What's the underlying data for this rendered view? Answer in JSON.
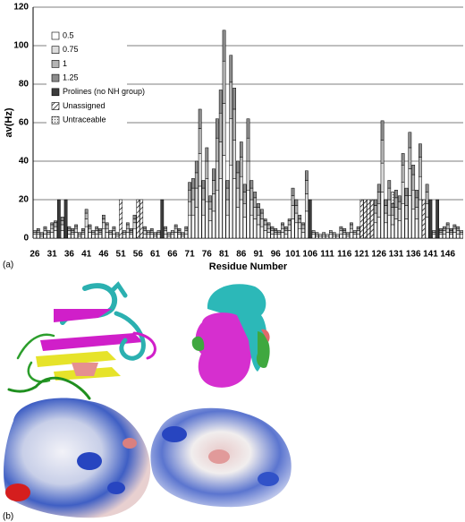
{
  "chart_data": {
    "type": "bar",
    "stacked": true,
    "x_label": "Residue Number",
    "y_label": "av(Hz)",
    "panel_label": "(a)",
    "grid": true,
    "ylim": [
      0,
      120
    ],
    "yticks": [
      0,
      20,
      40,
      60,
      80,
      100,
      120
    ],
    "categories": [
      "26",
      null,
      null,
      null,
      null,
      "31",
      null,
      null,
      null,
      null,
      "36",
      null,
      null,
      null,
      null,
      "41",
      null,
      null,
      null,
      null,
      "46",
      null,
      null,
      null,
      null,
      "51",
      null,
      null,
      null,
      null,
      "56",
      null,
      null,
      null,
      null,
      "61",
      null,
      null,
      null,
      null,
      "66",
      null,
      null,
      null,
      null,
      "71",
      null,
      null,
      null,
      null,
      "76",
      null,
      null,
      null,
      null,
      "81",
      null,
      null,
      null,
      null,
      "86",
      null,
      null,
      null,
      null,
      "91",
      null,
      null,
      null,
      null,
      "96",
      null,
      null,
      null,
      null,
      "101",
      null,
      null,
      null,
      null,
      "106",
      null,
      null,
      null,
      null,
      "111",
      null,
      null,
      null,
      null,
      "116",
      null,
      null,
      null,
      null,
      "121",
      null,
      null,
      null,
      null,
      "126",
      null,
      null,
      null,
      null,
      "131",
      null,
      null,
      null,
      null,
      "136",
      null,
      null,
      null,
      null,
      "141",
      null,
      null,
      null,
      null,
      "146",
      null,
      null,
      null,
      null
    ],
    "series": [
      {
        "name": "0.5",
        "color": "#ffffff",
        "values": [
          2,
          2,
          1,
          2,
          2,
          3,
          4,
          0,
          4,
          0,
          2,
          2,
          3,
          1,
          2,
          6,
          3,
          2,
          2,
          2,
          5,
          3,
          2,
          2,
          1,
          0,
          2,
          3,
          2,
          5,
          0,
          0,
          2,
          2,
          2,
          1,
          2,
          0,
          2,
          1,
          2,
          3,
          2,
          1,
          2,
          12,
          12,
          16,
          27,
          12,
          19,
          9,
          14,
          25,
          31,
          43,
          12,
          38,
          31,
          16,
          20,
          11,
          25,
          12,
          10,
          7,
          6,
          4,
          3,
          2,
          2,
          2,
          3,
          2,
          4,
          10,
          8,
          5,
          3,
          14,
          0,
          2,
          1,
          1,
          1,
          1,
          2,
          1,
          1,
          2,
          2,
          1,
          3,
          2,
          2,
          0,
          0,
          0,
          0,
          8,
          11,
          24,
          8,
          12,
          7,
          10,
          9,
          18,
          10,
          22,
          15,
          10,
          20,
          0,
          11,
          0,
          2,
          0,
          2,
          2,
          3,
          2,
          3,
          2,
          2
        ]
      },
      {
        "name": "0.75",
        "color": "#dcdcdc",
        "values": [
          1,
          1,
          1,
          2,
          1,
          2,
          2,
          0,
          3,
          0,
          2,
          1,
          2,
          1,
          1,
          4,
          2,
          1,
          2,
          1,
          3,
          2,
          1,
          2,
          1,
          0,
          1,
          2,
          1,
          3,
          0,
          0,
          2,
          1,
          1,
          1,
          1,
          0,
          2,
          1,
          1,
          2,
          1,
          1,
          2,
          7,
          8,
          10,
          17,
          8,
          12,
          6,
          9,
          15,
          19,
          27,
          8,
          24,
          20,
          10,
          12,
          7,
          15,
          8,
          6,
          5,
          4,
          3,
          2,
          2,
          1,
          1,
          2,
          2,
          3,
          7,
          5,
          3,
          2,
          9,
          0,
          1,
          1,
          1,
          1,
          1,
          1,
          1,
          1,
          2,
          1,
          1,
          2,
          1,
          2,
          0,
          0,
          0,
          0,
          5,
          7,
          15,
          5,
          8,
          5,
          6,
          6,
          11,
          7,
          14,
          10,
          6,
          12,
          0,
          7,
          0,
          1,
          0,
          1,
          2,
          2,
          1,
          2,
          2,
          1
        ]
      },
      {
        "name": "1",
        "color": "#b4b4b4",
        "values": [
          1,
          1,
          1,
          1,
          1,
          2,
          2,
          0,
          2,
          0,
          1,
          1,
          1,
          1,
          1,
          3,
          1,
          1,
          1,
          1,
          2,
          2,
          1,
          1,
          1,
          0,
          1,
          2,
          1,
          2,
          0,
          0,
          1,
          1,
          1,
          1,
          1,
          0,
          1,
          1,
          1,
          1,
          1,
          1,
          1,
          6,
          6,
          8,
          13,
          6,
          9,
          4,
          7,
          12,
          15,
          22,
          6,
          19,
          16,
          8,
          10,
          6,
          12,
          6,
          5,
          4,
          3,
          2,
          2,
          1,
          1,
          1,
          2,
          1,
          2,
          5,
          4,
          2,
          2,
          7,
          0,
          1,
          1,
          0,
          1,
          0,
          1,
          1,
          0,
          1,
          1,
          1,
          2,
          1,
          1,
          0,
          0,
          0,
          0,
          4,
          6,
          12,
          4,
          6,
          4,
          5,
          4,
          9,
          5,
          11,
          8,
          5,
          10,
          0,
          6,
          0,
          1,
          0,
          1,
          1,
          2,
          1,
          1,
          1,
          1
        ]
      },
      {
        "name": "1.25",
        "color": "#8c8c8c",
        "values": [
          0,
          1,
          0,
          1,
          0,
          1,
          1,
          0,
          2,
          0,
          1,
          1,
          1,
          0,
          1,
          2,
          1,
          0,
          1,
          1,
          2,
          1,
          0,
          1,
          0,
          0,
          0,
          1,
          1,
          2,
          0,
          0,
          1,
          0,
          1,
          0,
          0,
          0,
          1,
          0,
          0,
          1,
          1,
          0,
          1,
          4,
          5,
          6,
          10,
          4,
          7,
          3,
          6,
          10,
          12,
          16,
          4,
          14,
          11,
          6,
          8,
          4,
          10,
          4,
          3,
          2,
          2,
          1,
          1,
          1,
          1,
          0,
          1,
          1,
          1,
          4,
          3,
          2,
          1,
          5,
          0,
          0,
          0,
          0,
          0,
          0,
          0,
          0,
          0,
          1,
          1,
          0,
          1,
          0,
          1,
          0,
          0,
          0,
          0,
          3,
          4,
          10,
          3,
          4,
          2,
          4,
          3,
          6,
          4,
          8,
          5,
          4,
          7,
          0,
          4,
          0,
          0,
          0,
          1,
          1,
          1,
          1,
          1,
          1,
          0
        ]
      },
      {
        "name": "Prolines (no NH group)",
        "color": "#3c3c3c",
        "values": [
          null,
          null,
          null,
          null,
          null,
          null,
          null,
          20,
          null,
          20,
          null,
          null,
          null,
          null,
          null,
          null,
          null,
          null,
          null,
          null,
          null,
          null,
          null,
          null,
          null,
          null,
          null,
          null,
          null,
          null,
          null,
          null,
          null,
          null,
          null,
          null,
          null,
          20,
          null,
          null,
          null,
          null,
          null,
          null,
          null,
          null,
          null,
          null,
          null,
          null,
          null,
          null,
          null,
          null,
          null,
          null,
          null,
          null,
          null,
          null,
          null,
          null,
          null,
          null,
          null,
          null,
          null,
          null,
          null,
          null,
          null,
          null,
          null,
          null,
          null,
          null,
          null,
          null,
          null,
          null,
          20,
          null,
          null,
          null,
          null,
          null,
          null,
          null,
          null,
          null,
          null,
          null,
          null,
          null,
          null,
          null,
          null,
          null,
          null,
          null,
          null,
          null,
          null,
          null,
          null,
          null,
          null,
          null,
          null,
          null,
          null,
          null,
          null,
          null,
          null,
          20,
          null,
          20,
          null,
          null,
          null,
          null,
          null,
          null,
          null
        ]
      },
      {
        "name": "Unassigned",
        "color": "#ffffff",
        "pattern": "hatch",
        "values": [
          null,
          null,
          null,
          null,
          null,
          null,
          null,
          null,
          null,
          null,
          null,
          null,
          null,
          null,
          null,
          null,
          null,
          null,
          null,
          null,
          null,
          null,
          null,
          null,
          null,
          20,
          null,
          null,
          null,
          null,
          20,
          20,
          null,
          null,
          null,
          null,
          null,
          null,
          null,
          null,
          null,
          null,
          null,
          null,
          null,
          null,
          null,
          null,
          null,
          null,
          null,
          null,
          null,
          null,
          null,
          null,
          null,
          null,
          null,
          null,
          null,
          null,
          null,
          null,
          null,
          null,
          null,
          null,
          null,
          null,
          null,
          null,
          null,
          null,
          null,
          null,
          null,
          null,
          null,
          null,
          null,
          null,
          null,
          null,
          null,
          null,
          null,
          null,
          null,
          null,
          null,
          null,
          null,
          null,
          null,
          20,
          20,
          20,
          20,
          null,
          null,
          null,
          null,
          null,
          null,
          null,
          null,
          null,
          null,
          null,
          null,
          null,
          null,
          20,
          null,
          null,
          null,
          null,
          null,
          null,
          null,
          null,
          null,
          null,
          null
        ]
      },
      {
        "name": "Untraceable",
        "color": "#e6e6e6",
        "pattern": "dots",
        "values": [
          null,
          null,
          null,
          null,
          null,
          null,
          null,
          null,
          null,
          null,
          null,
          null,
          null,
          null,
          null,
          null,
          null,
          null,
          null,
          null,
          null,
          null,
          null,
          null,
          null,
          null,
          null,
          null,
          null,
          null,
          null,
          null,
          null,
          null,
          null,
          null,
          null,
          null,
          null,
          null,
          null,
          null,
          null,
          null,
          null,
          null,
          null,
          null,
          null,
          null,
          null,
          null,
          null,
          null,
          null,
          null,
          null,
          null,
          null,
          null,
          null,
          null,
          null,
          null,
          null,
          null,
          null,
          null,
          null,
          null,
          null,
          null,
          null,
          null,
          null,
          null,
          null,
          null,
          null,
          null,
          null,
          null,
          null,
          null,
          null,
          null,
          null,
          null,
          null,
          null,
          null,
          null,
          null,
          null,
          null,
          null,
          null,
          null,
          null,
          null,
          null,
          null,
          null,
          null,
          6,
          null,
          null,
          null,
          null,
          null,
          null,
          null,
          null,
          null,
          null,
          null,
          null,
          null,
          null,
          null,
          null,
          null,
          null,
          null,
          null
        ]
      }
    ]
  },
  "panel_b_label": "(b)"
}
